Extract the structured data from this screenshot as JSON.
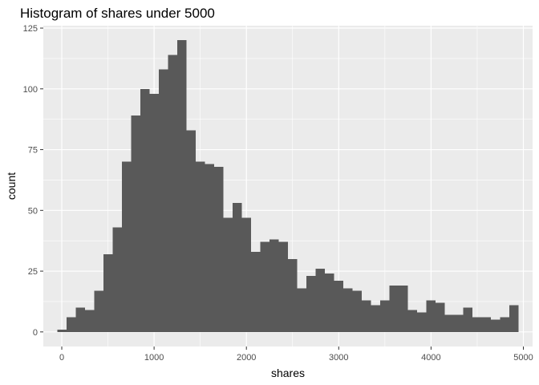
{
  "chart_data": {
    "type": "bar",
    "title": "Histogram of shares under 5000",
    "xlabel": "shares",
    "ylabel": "count",
    "x_ticks": [
      0,
      1000,
      2000,
      3000,
      4000,
      5000
    ],
    "y_ticks": [
      0,
      25,
      50,
      75,
      100,
      125
    ],
    "xlim": [
      -200,
      5100
    ],
    "ylim": [
      -6,
      126
    ],
    "bin_width": 100,
    "bin_centers": [
      0,
      100,
      200,
      300,
      400,
      500,
      600,
      700,
      800,
      900,
      1000,
      1100,
      1200,
      1300,
      1400,
      1500,
      1600,
      1700,
      1800,
      1900,
      2000,
      2100,
      2200,
      2300,
      2400,
      2500,
      2600,
      2700,
      2800,
      2900,
      3000,
      3100,
      3200,
      3300,
      3400,
      3500,
      3600,
      3700,
      3800,
      3900,
      4000,
      4100,
      4200,
      4300,
      4400,
      4500,
      4600,
      4700,
      4800,
      4900
    ],
    "values": [
      1,
      6,
      10,
      9,
      17,
      32,
      43,
      70,
      89,
      100,
      98,
      108,
      114,
      120,
      83,
      70,
      69,
      68,
      47,
      53,
      47,
      33,
      37,
      38,
      37,
      30,
      18,
      23,
      26,
      24,
      21,
      18,
      17,
      13,
      11,
      13,
      19,
      19,
      9,
      8,
      13,
      12,
      7,
      7,
      10,
      6,
      6,
      5,
      6,
      11
    ],
    "bar_color": "#595959",
    "panel_background": "#ebebeb",
    "grid_color": "#ffffff",
    "grid": true
  }
}
